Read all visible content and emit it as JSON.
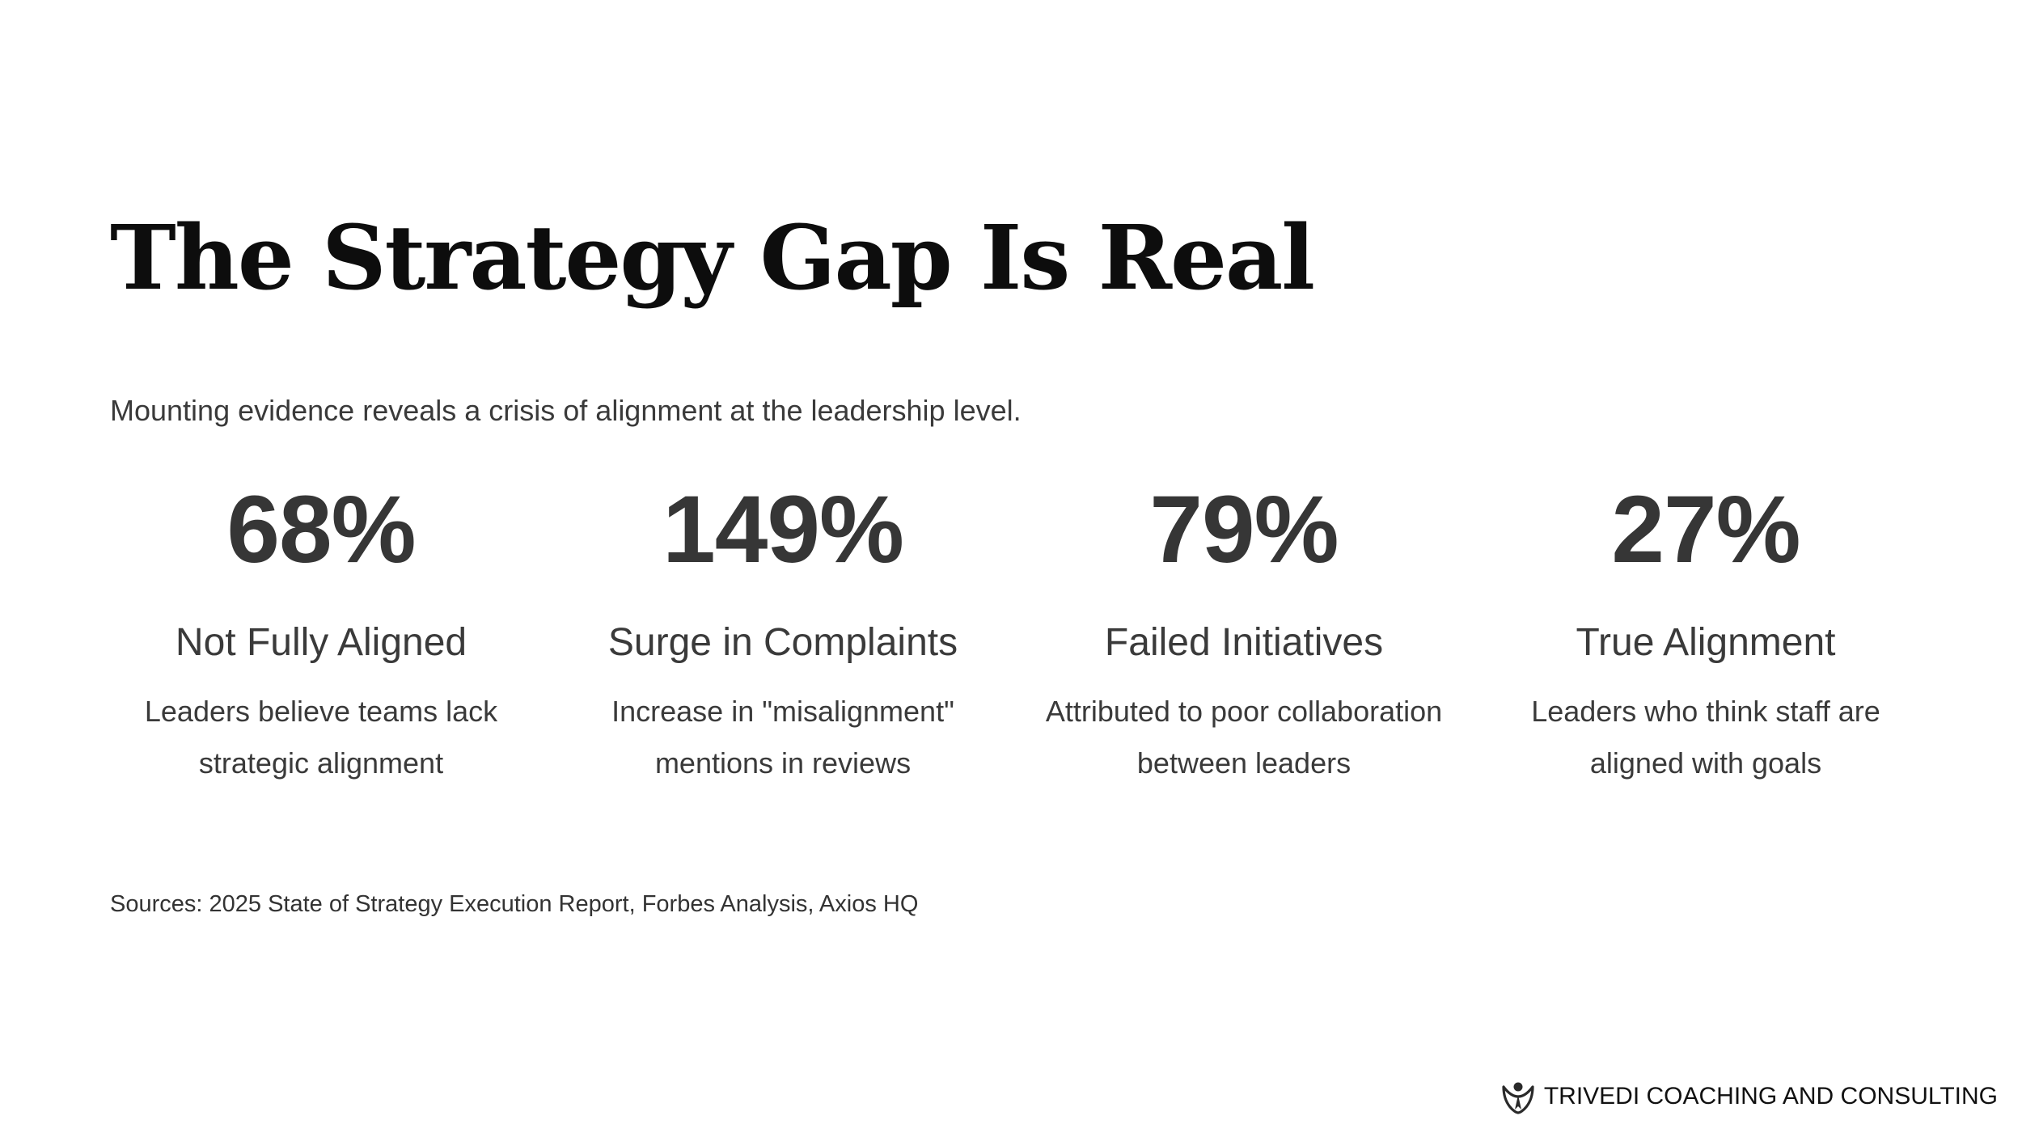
{
  "slide": {
    "title": "The Strategy Gap Is Real",
    "subtitle": "Mounting evidence reveals a crisis of alignment at the leadership level.",
    "stats": [
      {
        "value": "68%",
        "label": "Not Fully Aligned",
        "description_line1": "Leaders believe teams lack",
        "description_line2": "strategic alignment"
      },
      {
        "value": "149%",
        "label": "Surge in Complaints",
        "description_line1": "Increase in \"misalignment\"",
        "description_line2": "mentions in reviews"
      },
      {
        "value": "79%",
        "label": "Failed Initiatives",
        "description_line1": "Attributed to poor collaboration",
        "description_line2": "between leaders"
      },
      {
        "value": "27%",
        "label": "True Alignment",
        "description_line1": "Leaders who think staff are",
        "description_line2": "aligned with goals"
      }
    ],
    "sources": "Sources: 2025 State of Strategy Execution Report, Forbes Analysis, Axios HQ"
  },
  "brand": {
    "name": "TRIVEDI COACHING AND CONSULTING",
    "logo_icon": "person-heart-logo-icon"
  },
  "colors": {
    "background": "#ffffff",
    "title": "#0d0d0d",
    "text": "#3a3a3a",
    "stat_value": "#363636"
  }
}
